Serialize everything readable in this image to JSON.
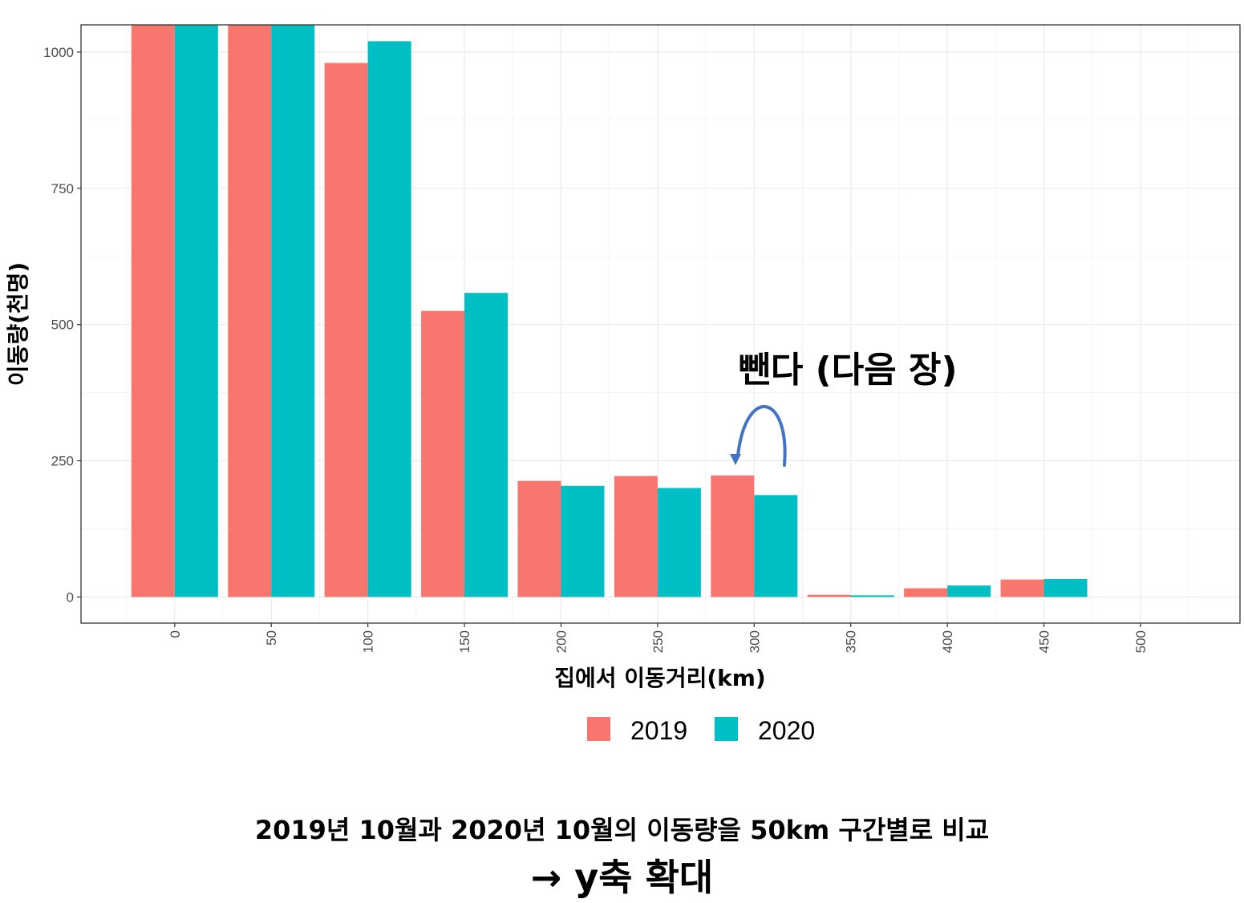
{
  "chart_data": {
    "type": "bar",
    "title": "",
    "xlabel": "집에서 이동거리(km)",
    "ylabel": "이동량(천명)",
    "categories": [
      "0",
      "50",
      "100",
      "150",
      "200",
      "250",
      "300",
      "350",
      "400",
      "450",
      "500"
    ],
    "series": [
      {
        "name": "2019",
        "color": "#F8766D",
        "values": [
          1050,
          1050,
          980,
          525,
          213,
          222,
          223,
          4,
          16,
          32,
          null
        ]
      },
      {
        "name": "2020",
        "color": "#00BFC4",
        "values": [
          1050,
          1050,
          1020,
          558,
          204,
          200,
          187,
          3,
          21,
          33,
          null
        ]
      }
    ],
    "ylim": [
      -48,
      1050
    ],
    "yticks": [
      0,
      250,
      500,
      750,
      1000
    ],
    "xticks": [
      0,
      50,
      100,
      150,
      200,
      250,
      300,
      350,
      400,
      450,
      500
    ],
    "grid": true,
    "legend_position": "bottom",
    "annotation": {
      "text": "뺀다 (다음 장)",
      "color": "#4472C4",
      "target_category": "300"
    }
  },
  "caption": {
    "line1": "2019년 10월과 2020년 10월의 이동량을 50km 구간별로 비교",
    "line2": "→ y축 확대"
  }
}
